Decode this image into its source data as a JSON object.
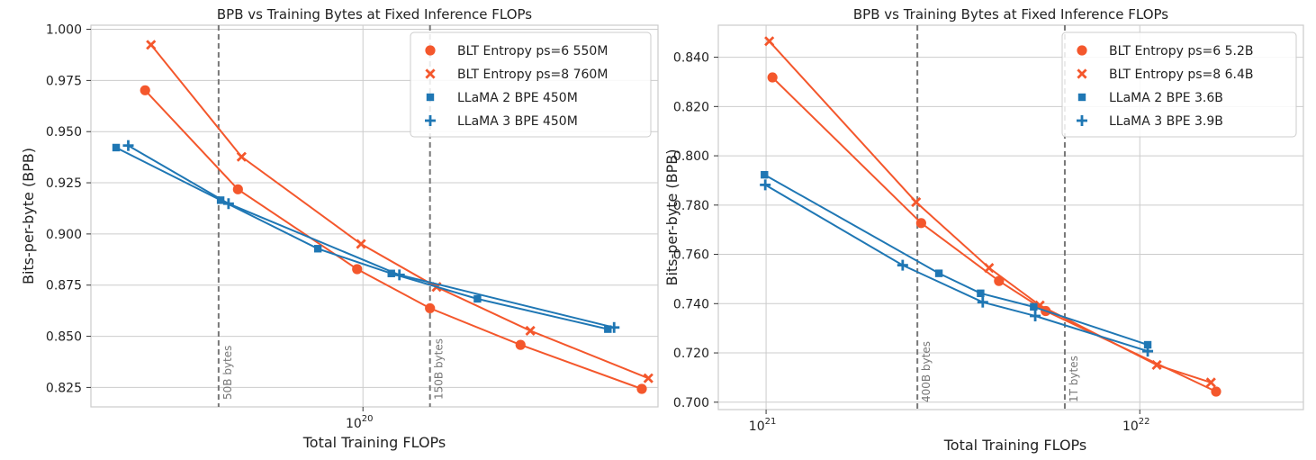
{
  "chart_data": [
    {
      "type": "line",
      "title": "BPB vs Training Bytes at Fixed Inference FLOPs",
      "xlabel": "Total Training FLOPs",
      "ylabel": "Bits-per-byte (BPB)",
      "xscale": "log",
      "xlim": [
        2.41e+19,
        4.68e+20
      ],
      "ylim": [
        0.8155,
        1.002
      ],
      "yticks": [
        0.825,
        0.85,
        0.875,
        0.9,
        0.925,
        0.95,
        0.975,
        1.0
      ],
      "ytick_labels": [
        "0.825",
        "0.850",
        "0.875",
        "0.900",
        "0.925",
        "0.950",
        "0.975",
        "1.000"
      ],
      "xticks": [
        1e+20
      ],
      "xtick_labels": [
        {
          "base": "10",
          "exp": "20"
        }
      ],
      "grid": true,
      "legend_position": "top-right",
      "vlines": [
        {
          "x": 4.7e+19,
          "label": "50B bytes"
        },
        {
          "x": 1.42e+20,
          "label": "150B bytes"
        }
      ],
      "series": [
        {
          "name": "BLT Entropy ps=6 550M",
          "marker": "circle",
          "color": "#f4572c",
          "x": [
            3.2e+19,
            5.2e+19,
            9.7e+19,
            1.42e+20,
            2.28e+20,
            4.3e+20
          ],
          "y": [
            0.9702,
            0.9218,
            0.8828,
            0.8637,
            0.8458,
            0.8243
          ]
        },
        {
          "name": "BLT Entropy ps=8 760M",
          "marker": "x",
          "color": "#f4572c",
          "x": [
            3.3e+19,
            5.3e+19,
            9.9e+19,
            1.47e+20,
            2.4e+20,
            4.45e+20
          ],
          "y": [
            0.9924,
            0.9377,
            0.8951,
            0.8741,
            0.8527,
            0.8295
          ]
        },
        {
          "name": "LLaMA 2 BPE 450M",
          "marker": "square",
          "color": "#1f77b4",
          "x": [
            2.75e+19,
            4.75e+19,
            7.9e+19,
            1.16e+20,
            1.82e+20,
            3.6e+20
          ],
          "y": [
            0.9422,
            0.9165,
            0.8928,
            0.8807,
            0.8683,
            0.8535
          ]
        },
        {
          "name": "LLaMA 3 BPE 450M",
          "marker": "plus",
          "color": "#1f77b4",
          "x": [
            2.93e+19,
            4.95e+19,
            1.21e+20,
            3.72e+20
          ],
          "y": [
            0.9432,
            0.9148,
            0.88,
            0.8543
          ]
        }
      ]
    },
    {
      "type": "line",
      "title": "BPB vs Training Bytes at Fixed Inference FLOPs",
      "xlabel": "Total Training FLOPs",
      "ylabel": "Bits-per-byte (BPB)",
      "xscale": "log",
      "xlim": [
        7.45e+20,
        2.74e+22
      ],
      "ylim": [
        0.697,
        0.853
      ],
      "yticks": [
        0.7,
        0.72,
        0.74,
        0.76,
        0.78,
        0.8,
        0.82,
        0.84
      ],
      "ytick_labels": [
        "0.700",
        "0.720",
        "0.740",
        "0.760",
        "0.780",
        "0.800",
        "0.820",
        "0.840"
      ],
      "xticks": [
        1e+21,
        1e+22
      ],
      "xtick_labels": [
        {
          "base": "10",
          "exp": "21"
        },
        {
          "base": "10",
          "exp": "22"
        }
      ],
      "grid": true,
      "legend_position": "top-right",
      "vlines": [
        {
          "x": 2.54e+21,
          "label": "400B bytes"
        },
        {
          "x": 6.3e+21,
          "label": "1T bytes"
        }
      ],
      "series": [
        {
          "name": "BLT Entropy ps=6 5.2B",
          "marker": "circle",
          "color": "#f4572c",
          "x": [
            1.04e+21,
            2.6e+21,
            4.2e+21,
            5.6e+21,
            1.6e+22
          ],
          "y": [
            0.8318,
            0.7727,
            0.7492,
            0.737,
            0.7043
          ]
        },
        {
          "name": "BLT Entropy ps=8 6.4B",
          "marker": "x",
          "color": "#f4572c",
          "x": [
            1.02e+21,
            2.52e+21,
            3.95e+21,
            5.4e+21,
            1.11e+22,
            1.55e+22
          ],
          "y": [
            0.8465,
            0.7812,
            0.7545,
            0.7393,
            0.7151,
            0.708
          ]
        },
        {
          "name": "LLaMA 2 BPE 3.6B",
          "marker": "square",
          "color": "#1f77b4",
          "x": [
            9.9e+20,
            2.9e+21,
            3.75e+21,
            5.2e+21,
            1.05e+22
          ],
          "y": [
            0.7923,
            0.7523,
            0.7442,
            0.7387,
            0.7233
          ]
        },
        {
          "name": "LLaMA 3 BPE 3.9B",
          "marker": "plus",
          "color": "#1f77b4",
          "x": [
            9.95e+20,
            2.32e+21,
            3.8e+21,
            5.25e+21,
            1.05e+22
          ],
          "y": [
            0.7882,
            0.7556,
            0.7406,
            0.735,
            0.7207
          ]
        }
      ]
    }
  ]
}
